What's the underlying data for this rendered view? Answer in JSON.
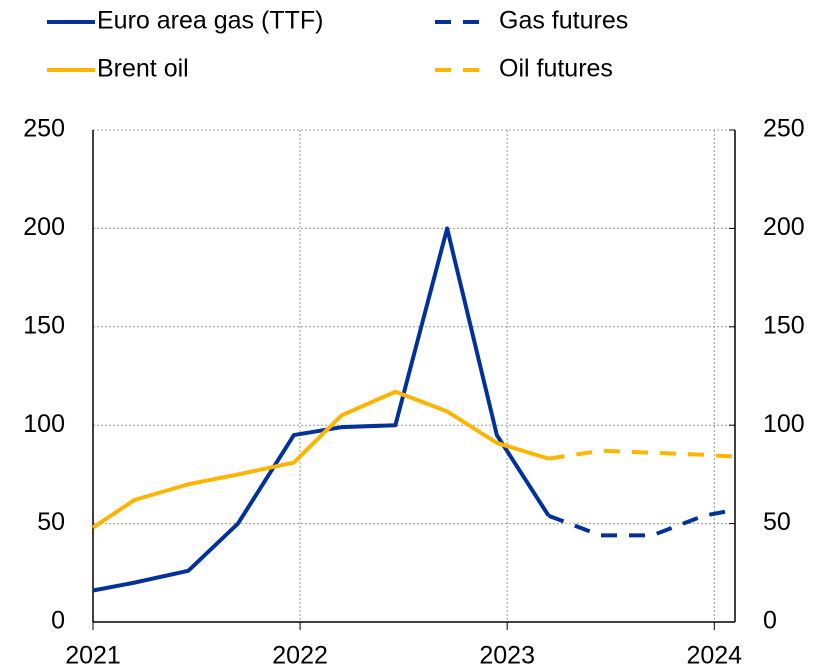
{
  "chart_data": {
    "type": "line",
    "series": [
      {
        "name": "Euro area gas (TTF)",
        "color": "#003299",
        "dashed": false,
        "x": [
          2021.0,
          2021.2,
          2021.46,
          2021.7,
          2021.97,
          2022.2,
          2022.46,
          2022.71,
          2022.95,
          2023.2
        ],
        "values": [
          16,
          20,
          26,
          50,
          95,
          99,
          100,
          200,
          95,
          54
        ]
      },
      {
        "name": "Gas futures",
        "color": "#003299",
        "dashed": true,
        "x": [
          2023.2,
          2023.45,
          2023.7,
          2023.95,
          2024.1
        ],
        "values": [
          54,
          44,
          44,
          54,
          57
        ]
      },
      {
        "name": "Brent oil",
        "color": "#ffb400",
        "dashed": false,
        "x": [
          2021.0,
          2021.2,
          2021.46,
          2021.7,
          2021.97,
          2022.2,
          2022.46,
          2022.71,
          2022.95,
          2023.2
        ],
        "values": [
          48,
          62,
          70,
          75,
          81,
          105,
          117,
          107,
          91,
          83
        ]
      },
      {
        "name": "Oil futures",
        "color": "#ffb400",
        "dashed": true,
        "x": [
          2023.2,
          2023.45,
          2023.7,
          2023.95,
          2024.1
        ],
        "values": [
          83,
          87,
          86,
          85,
          84
        ]
      }
    ],
    "xlim": [
      2021,
      2024.1
    ],
    "xticks": [
      2021,
      2022,
      2023,
      2024
    ],
    "ylim": [
      0,
      250
    ],
    "yticks": [
      0,
      50,
      100,
      150,
      200,
      250
    ],
    "y2lim": [
      0,
      250
    ],
    "y2ticks": [
      0,
      50,
      100,
      150,
      200,
      250
    ],
    "grid": true
  }
}
